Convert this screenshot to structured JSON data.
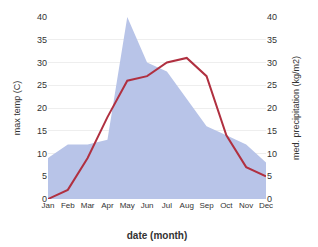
{
  "chart_data": {
    "type": "line",
    "categories": [
      "Jan",
      "Feb",
      "Mar",
      "Apr",
      "May",
      "Jun",
      "Jul",
      "Aug",
      "Sep",
      "Oct",
      "Nov",
      "Dec"
    ],
    "series": [
      {
        "type": "area",
        "axis": "y2",
        "color": "#b8c4e8",
        "values": [
          9,
          12,
          12,
          13,
          40,
          30,
          28,
          22,
          16,
          14,
          12,
          8
        ]
      },
      {
        "type": "line",
        "color": "#b03040",
        "values": [
          0,
          2,
          9,
          18,
          26,
          27,
          30,
          31,
          27,
          14,
          7,
          5
        ]
      }
    ],
    "xlabel": "date (month)",
    "ylabel": "max temp (C)",
    "y2label": "med. precipitation (kg/m2)",
    "ylim": [
      0,
      40
    ],
    "yticks": [
      0,
      5,
      10,
      15,
      20,
      25,
      30,
      35,
      40
    ],
    "y2lim": [
      0,
      40
    ],
    "y2ticks": [
      0,
      5,
      10,
      15,
      20,
      25,
      30,
      35,
      40
    ],
    "grid": true
  }
}
